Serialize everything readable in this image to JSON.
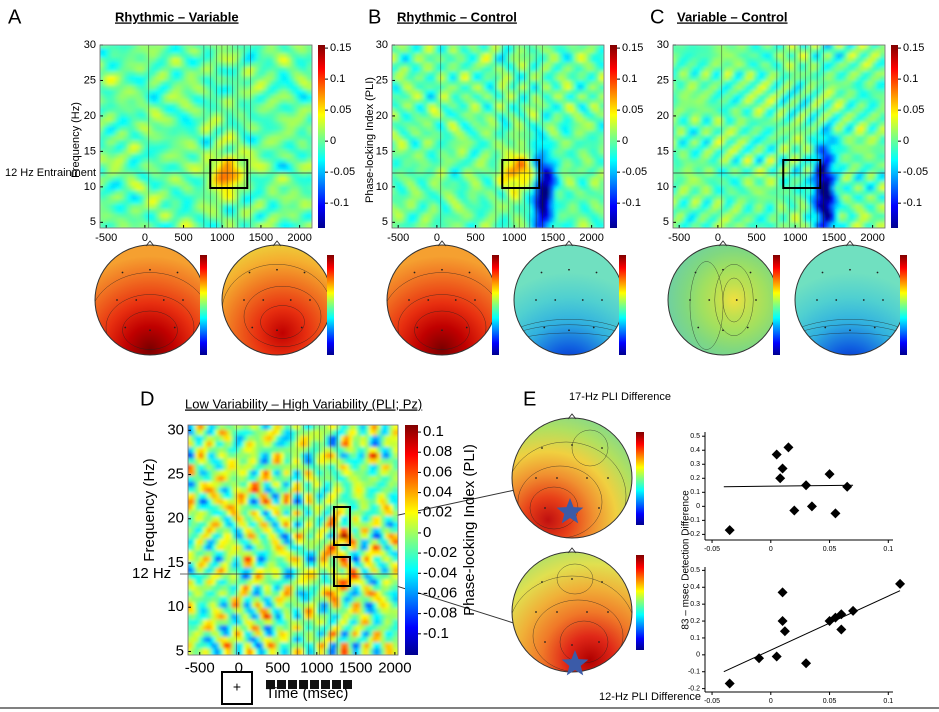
{
  "panels": [
    {
      "letter": "A",
      "title": "Rhythmic – Variable",
      "y_label": "Frequency (Hz)",
      "annotation": "12 Hz Entrainment",
      "xlim": [
        -580,
        2160
      ],
      "xticks": [
        -500,
        0,
        500,
        1000,
        1500,
        2000
      ],
      "ylim": [
        4.2,
        30
      ],
      "yticks": [
        5,
        10,
        15,
        20,
        25,
        30
      ],
      "clim": [
        -0.14,
        0.155
      ],
      "cticks": [
        -0.1,
        -0.05,
        0,
        0.05,
        0.1,
        0.15
      ]
    },
    {
      "letter": "B",
      "title": "Rhythmic – Control",
      "y_label": "Phase-locking Index (PLI)",
      "xlim": [
        -580,
        2160
      ],
      "xticks": [
        -500,
        0,
        500,
        1000,
        1500,
        2000
      ],
      "ylim": [
        4.2,
        30
      ],
      "yticks": [
        5,
        10,
        15,
        20,
        25,
        30
      ],
      "clim": [
        -0.14,
        0.155
      ],
      "cticks": [
        -0.1,
        -0.05,
        0,
        0.05,
        0.1,
        0.15
      ]
    },
    {
      "letter": "C",
      "title": "Variable – Control",
      "xlim": [
        -580,
        2160
      ],
      "xticks": [
        -500,
        0,
        500,
        1000,
        1500,
        2000
      ],
      "ylim": [
        4.2,
        30
      ],
      "yticks": [
        5,
        10,
        15,
        20,
        25,
        30
      ],
      "clim": [
        -0.14,
        0.155
      ],
      "cticks": [
        -0.1,
        -0.05,
        0,
        0.05,
        0.1,
        0.15
      ]
    }
  ],
  "panel_d": {
    "letter": "D",
    "title": "Low Variability – High Variability (PLI; Pz)",
    "y_label": "Frequency (Hz)",
    "x_label": "Time (msec)",
    "colorbar_label": "Phase-locking Index (PLI)",
    "annotation": "12 Hz",
    "fixation_symbol": "+",
    "xlim": [
      -650,
      2040
    ],
    "xticks": [
      -500,
      0,
      500,
      1000,
      1500,
      2000
    ],
    "ylim": [
      4.6,
      30.6
    ],
    "yticks": [
      5,
      10,
      15,
      20,
      25,
      30
    ],
    "clim": [
      -0.121,
      0.107
    ],
    "cticks": [
      -0.1,
      -0.08,
      -0.06,
      -0.04,
      -0.02,
      0,
      0.02,
      0.04,
      0.06,
      0.08,
      0.1
    ]
  },
  "panel_e": {
    "letter": "E",
    "top_title": "17-Hz PLI Difference",
    "bottom_title": "12-Hz PLI Difference",
    "y_label": "83 – msec Detection Difference",
    "scatters": [
      {
        "xlim": [
          -0.056,
          0.104
        ],
        "xticks": [
          -0.05,
          0,
          0.05,
          0.1
        ],
        "ylim": [
          -0.24,
          0.53
        ],
        "yticks": [
          -0.2,
          -0.1,
          0,
          0.1,
          0.2,
          0.3,
          0.4,
          0.5
        ],
        "x": [
          -0.035,
          0.005,
          0.01,
          0.015,
          0.008,
          0.03,
          0.02,
          0.035,
          0.05,
          0.055,
          0.065
        ],
        "y": [
          -0.17,
          0.37,
          0.27,
          0.42,
          0.2,
          0.15,
          -0.03,
          0,
          0.23,
          -0.05,
          0.14
        ],
        "fit": {
          "x": [
            -0.04,
            0.07
          ],
          "y": [
            0.14,
            0.15
          ]
        }
      },
      {
        "xlim": [
          -0.056,
          0.104
        ],
        "xticks": [
          -0.05,
          0,
          0.05,
          0.1
        ],
        "ylim": [
          -0.22,
          0.52
        ],
        "yticks": [
          -0.2,
          -0.1,
          0,
          0.1,
          0.2,
          0.3,
          0.4,
          0.5
        ],
        "x": [
          -0.035,
          -0.01,
          0.005,
          0.01,
          0.01,
          0.012,
          0.03,
          0.05,
          0.055,
          0.06,
          0.06,
          0.07,
          0.11
        ],
        "y": [
          -0.17,
          -0.02,
          -0.01,
          0.37,
          0.2,
          0.14,
          -0.05,
          0.2,
          0.22,
          0.15,
          0.24,
          0.26,
          0.42
        ],
        "fit": {
          "x": [
            -0.04,
            0.11
          ],
          "y": [
            -0.1,
            0.38
          ]
        }
      }
    ]
  }
}
